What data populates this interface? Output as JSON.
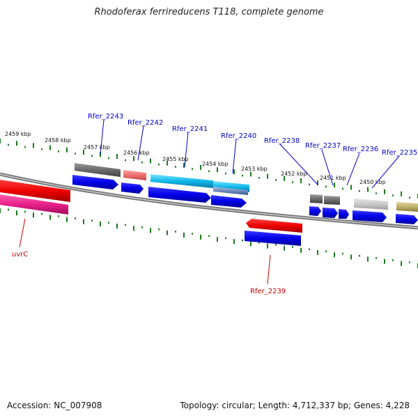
{
  "title": "Rhodoferax ferrireducens T118, complete genome",
  "footer": {
    "accession": "Accession: NC_007908",
    "summary": "Topology: circular; Length: 4,712,337 bp; Genes: 4,228"
  },
  "scale_labels": [
    "2459 kbp",
    "2458 kbp",
    "2457 kbp",
    "2456 kbp",
    "2455 kbp",
    "2454 kbp",
    "2453 kbp",
    "2452 kbp",
    "2451 kbp",
    "2450 kbp"
  ],
  "gene_labels_top": [
    "Rfer_2243",
    "Rfer_2242",
    "Rfer_2241",
    "Rfer_2240",
    "Rfer_2238",
    "Rfer_2237",
    "Rfer_2236",
    "Rfer_2235"
  ],
  "gene_labels_bottom": [
    "uvrC",
    "Rfer_2239"
  ],
  "colors": {
    "label_blue": "#0000cc",
    "label_red": "#cc0000",
    "tick_green": "#1a7a1a",
    "cds_blue": "#0000ee",
    "backbone": "#777777"
  }
}
